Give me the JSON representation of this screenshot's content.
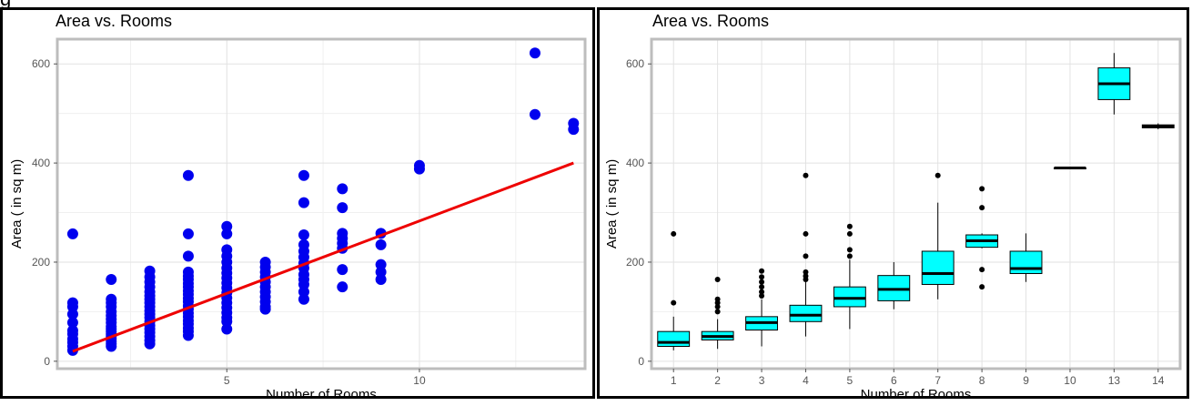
{
  "header_fragment": "g",
  "chart_data": [
    {
      "type": "scatter",
      "title": "Area vs. Rooms",
      "xlabel": "Number of Rooms",
      "ylabel": "Area ( in sq m)",
      "xlim": [
        0.6,
        14.3
      ],
      "ylim": [
        -15,
        650
      ],
      "xticks": [
        5,
        10
      ],
      "yticks": [
        0,
        200,
        400,
        600
      ],
      "grid": true,
      "point_color": "#0000ee",
      "line_color": "#ee0000",
      "regression_line": {
        "x": [
          1,
          14
        ],
        "y": [
          20,
          400
        ]
      },
      "points": [
        [
          1,
          257
        ],
        [
          1,
          118
        ],
        [
          1,
          110
        ],
        [
          1,
          95
        ],
        [
          1,
          78
        ],
        [
          1,
          62
        ],
        [
          1,
          55
        ],
        [
          1,
          45
        ],
        [
          1,
          38
        ],
        [
          1,
          30
        ],
        [
          1,
          22
        ],
        [
          2,
          165
        ],
        [
          2,
          125
        ],
        [
          2,
          118
        ],
        [
          2,
          110
        ],
        [
          2,
          100
        ],
        [
          2,
          92
        ],
        [
          2,
          85
        ],
        [
          2,
          78
        ],
        [
          2,
          70
        ],
        [
          2,
          65
        ],
        [
          2,
          60
        ],
        [
          2,
          55
        ],
        [
          2,
          50
        ],
        [
          2,
          45
        ],
        [
          2,
          40
        ],
        [
          2,
          35
        ],
        [
          2,
          30
        ],
        [
          3,
          182
        ],
        [
          3,
          170
        ],
        [
          3,
          160
        ],
        [
          3,
          150
        ],
        [
          3,
          140
        ],
        [
          3,
          132
        ],
        [
          3,
          125
        ],
        [
          3,
          118
        ],
        [
          3,
          110
        ],
        [
          3,
          102
        ],
        [
          3,
          95
        ],
        [
          3,
          88
        ],
        [
          3,
          80
        ],
        [
          3,
          72
        ],
        [
          3,
          65
        ],
        [
          3,
          58
        ],
        [
          3,
          50
        ],
        [
          3,
          42
        ],
        [
          3,
          35
        ],
        [
          4,
          375
        ],
        [
          4,
          257
        ],
        [
          4,
          212
        ],
        [
          4,
          180
        ],
        [
          4,
          172
        ],
        [
          4,
          165
        ],
        [
          4,
          157
        ],
        [
          4,
          150
        ],
        [
          4,
          142
        ],
        [
          4,
          135
        ],
        [
          4,
          127
        ],
        [
          4,
          120
        ],
        [
          4,
          112
        ],
        [
          4,
          105
        ],
        [
          4,
          97
        ],
        [
          4,
          90
        ],
        [
          4,
          82
        ],
        [
          4,
          75
        ],
        [
          4,
          67
        ],
        [
          4,
          60
        ],
        [
          4,
          52
        ],
        [
          5,
          272
        ],
        [
          5,
          257
        ],
        [
          5,
          225
        ],
        [
          5,
          212
        ],
        [
          5,
          200
        ],
        [
          5,
          188
        ],
        [
          5,
          178
        ],
        [
          5,
          168
        ],
        [
          5,
          158
        ],
        [
          5,
          148
        ],
        [
          5,
          138
        ],
        [
          5,
          128
        ],
        [
          5,
          118
        ],
        [
          5,
          108
        ],
        [
          5,
          98
        ],
        [
          5,
          88
        ],
        [
          5,
          80
        ],
        [
          5,
          65
        ],
        [
          6,
          200
        ],
        [
          6,
          190
        ],
        [
          6,
          180
        ],
        [
          6,
          170
        ],
        [
          6,
          160
        ],
        [
          6,
          150
        ],
        [
          6,
          140
        ],
        [
          6,
          130
        ],
        [
          6,
          120
        ],
        [
          6,
          110
        ],
        [
          6,
          105
        ],
        [
          7,
          375
        ],
        [
          7,
          320
        ],
        [
          7,
          255
        ],
        [
          7,
          235
        ],
        [
          7,
          222
        ],
        [
          7,
          210
        ],
        [
          7,
          198
        ],
        [
          7,
          188
        ],
        [
          7,
          175
        ],
        [
          7,
          165
        ],
        [
          7,
          155
        ],
        [
          7,
          140
        ],
        [
          7,
          125
        ],
        [
          8,
          348
        ],
        [
          8,
          310
        ],
        [
          8,
          258
        ],
        [
          8,
          248
        ],
        [
          8,
          238
        ],
        [
          8,
          228
        ],
        [
          8,
          185
        ],
        [
          8,
          150
        ],
        [
          9,
          258
        ],
        [
          9,
          235
        ],
        [
          9,
          195
        ],
        [
          9,
          180
        ],
        [
          9,
          165
        ],
        [
          10,
          395
        ],
        [
          10,
          388
        ],
        [
          13,
          622
        ],
        [
          13,
          498
        ],
        [
          14,
          480
        ],
        [
          14,
          468
        ]
      ]
    },
    {
      "type": "box",
      "title": "Area vs. Rooms",
      "xlabel": "Number of Rooms",
      "ylabel": "Area ( in sq m)",
      "ylim": [
        -15,
        650
      ],
      "yticks": [
        0,
        200,
        400,
        600
      ],
      "grid": true,
      "box_color": "#00ffff",
      "categories": [
        "1",
        "2",
        "3",
        "4",
        "5",
        "6",
        "7",
        "8",
        "9",
        "10",
        "13",
        "14"
      ],
      "boxes": [
        {
          "whisker_low": 22,
          "q1": 30,
          "median": 38,
          "q3": 60,
          "whisker_high": 90,
          "outliers": [
            118,
            257
          ]
        },
        {
          "whisker_low": 25,
          "q1": 43,
          "median": 50,
          "q3": 60,
          "whisker_high": 85,
          "outliers": [
            100,
            110,
            118,
            125,
            165
          ]
        },
        {
          "whisker_low": 30,
          "q1": 63,
          "median": 78,
          "q3": 90,
          "whisker_high": 125,
          "outliers": [
            132,
            140,
            150,
            160,
            170,
            182
          ]
        },
        {
          "whisker_low": 50,
          "q1": 80,
          "median": 93,
          "q3": 113,
          "whisker_high": 160,
          "outliers": [
            165,
            172,
            180,
            212,
            257,
            375
          ]
        },
        {
          "whisker_low": 65,
          "q1": 110,
          "median": 127,
          "q3": 150,
          "whisker_high": 205,
          "outliers": [
            212,
            225,
            257,
            272
          ]
        },
        {
          "whisker_low": 105,
          "q1": 122,
          "median": 145,
          "q3": 173,
          "whisker_high": 200,
          "outliers": []
        },
        {
          "whisker_low": 125,
          "q1": 155,
          "median": 177,
          "q3": 222,
          "whisker_high": 320,
          "outliers": [
            375
          ]
        },
        {
          "whisker_low": 228,
          "q1": 230,
          "median": 243,
          "q3": 255,
          "whisker_high": 258,
          "outliers": [
            150,
            185,
            310,
            348
          ]
        },
        {
          "whisker_low": 160,
          "q1": 177,
          "median": 187,
          "q3": 222,
          "whisker_high": 258,
          "outliers": []
        },
        {
          "whisker_low": 388,
          "q1": 390,
          "median": 390,
          "q3": 390,
          "whisker_high": 392,
          "outliers": []
        },
        {
          "whisker_low": 498,
          "q1": 528,
          "median": 560,
          "q3": 592,
          "whisker_high": 622,
          "outliers": []
        },
        {
          "whisker_low": 468,
          "q1": 471,
          "median": 474,
          "q3": 477,
          "whisker_high": 480,
          "outliers": []
        }
      ]
    }
  ]
}
